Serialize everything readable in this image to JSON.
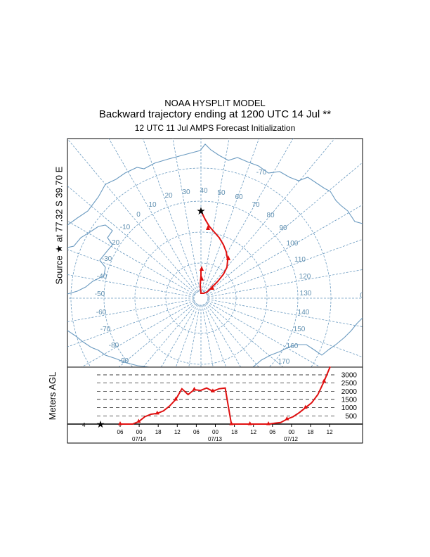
{
  "titles": {
    "line1": "NOAA HYSPLIT MODEL",
    "line2": "Backward trajectory ending at 1200 UTC 14 Jul **",
    "line3": "12 UTC 11 Jul    AMPS  Forecast Initialization"
  },
  "map": {
    "source_label": "Source ★ at  77.32 S  39.70 E",
    "colors": {
      "grid": "#6a9ac0",
      "trajectory": "#e01010",
      "coast": "#6a9ac0"
    },
    "meridian_labels": [
      "0",
      "10",
      "20",
      "30",
      "40",
      "50",
      "60",
      "70",
      "80",
      "90",
      "100",
      "110",
      "120",
      "130",
      "140",
      "150",
      "160",
      "170",
      "-10",
      "-20",
      "-30",
      "-40",
      "-50",
      "-60",
      "-70",
      "-80",
      "-90",
      "-70"
    ],
    "source_symbol": "star"
  },
  "altitude": {
    "ylabel": "Meters AGL",
    "height_labels": [
      "3000",
      "2500",
      "2000",
      "1500",
      "1000",
      "500"
    ],
    "hour_labels": [
      "06",
      "00",
      "18",
      "12",
      "06",
      "00",
      "18",
      "12",
      "06",
      "00",
      "18",
      "12"
    ],
    "date_labels": [
      "07/14",
      "07/13",
      "07/12"
    ],
    "left_marker": "4"
  },
  "chart_data": {
    "type": "line",
    "ylabel": "Meters AGL",
    "series": [
      {
        "values": [
          0,
          0,
          0,
          150,
          450,
          600,
          650,
          800,
          1100,
          1500,
          2150,
          1800,
          2100,
          2050,
          2200,
          2000,
          2150,
          2200,
          0,
          0,
          0,
          0,
          0,
          0,
          0,
          50,
          100,
          300,
          450,
          700,
          1000,
          1300,
          1800,
          2600,
          3500
        ]
      }
    ]
  }
}
